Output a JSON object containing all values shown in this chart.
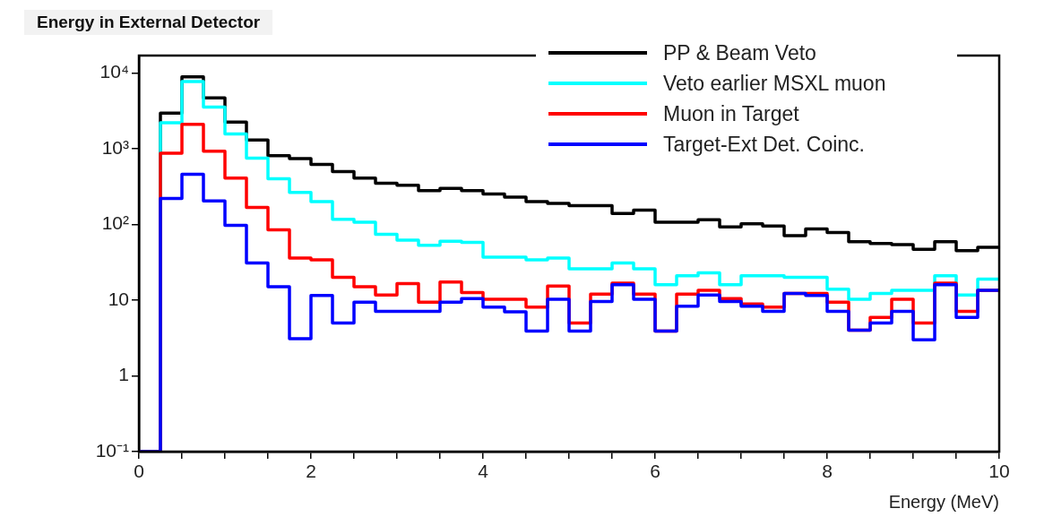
{
  "chart_data": {
    "type": "histogram",
    "title": "Energy in External Detector",
    "xlabel": "Energy (MeV)",
    "bins": [
      0,
      0.25,
      0.5,
      0.75,
      1,
      1.25,
      1.5,
      1.75,
      2,
      2.25,
      2.5,
      2.75,
      3,
      3.25,
      3.5,
      3.75,
      4,
      4.25,
      4.5,
      4.75,
      5,
      5.25,
      5.5,
      5.75,
      6,
      6.25,
      6.5,
      6.75,
      7,
      7.25,
      7.5,
      7.75,
      8,
      8.25,
      8.5,
      8.75,
      9,
      9.25,
      9.5,
      9.75,
      10
    ],
    "series": [
      {
        "name": "PP & Beam Veto",
        "color": "#000000",
        "values": [
          0.1,
          2950,
          8900,
          4700,
          2250,
          1300,
          810,
          740,
          620,
          500,
          410,
          350,
          330,
          280,
          300,
          280,
          253,
          230,
          200,
          190,
          177,
          177,
          140,
          155,
          107,
          107,
          115,
          93,
          102,
          95,
          71,
          87,
          78,
          59,
          56,
          54,
          47,
          59,
          45,
          50
        ]
      },
      {
        "name": "Veto earlier MSXL muon",
        "color": "#00ffff",
        "values": [
          0.1,
          2200,
          7700,
          3550,
          1570,
          750,
          400,
          265,
          200,
          117,
          107,
          74,
          62,
          53,
          60,
          58,
          37,
          37,
          34,
          36,
          26,
          26,
          31,
          26,
          16,
          21,
          23,
          16,
          21,
          21,
          20,
          20,
          14,
          10.3,
          12.3,
          13.5,
          13.5,
          21,
          11.7,
          19
        ]
      },
      {
        "name": "Muon in Target",
        "color": "#ff0000",
        "values": [
          0.1,
          870,
          2100,
          930,
          410,
          168,
          85,
          36,
          34,
          20,
          15,
          11.7,
          16.5,
          9.4,
          17.3,
          12.6,
          10.3,
          10.3,
          8.1,
          15.4,
          5,
          12,
          16.8,
          12,
          3.9,
          12,
          13.5,
          10.5,
          8.9,
          8.1,
          12.3,
          12.3,
          9.4,
          4,
          5.9,
          10.3,
          5,
          16.8,
          7.1,
          13.5
        ]
      },
      {
        "name": "Target-Ext Det. Coinc.",
        "color": "#0000ff",
        "values": [
          0.1,
          220,
          460,
          205,
          97,
          31,
          15,
          3.1,
          11.5,
          5,
          9.4,
          7.1,
          7.1,
          7.1,
          9.4,
          10.5,
          8.1,
          7,
          3.9,
          10.3,
          3.9,
          9.6,
          16,
          10.3,
          3.9,
          8.3,
          11.7,
          9.6,
          8.3,
          7.1,
          12.3,
          11.5,
          7.1,
          4,
          5,
          7.1,
          3,
          16,
          5.9,
          13.5
        ]
      }
    ],
    "log": "y",
    "xlim": [
      0,
      10
    ],
    "ylim": [
      0.1,
      17000
    ],
    "xticks": [
      0,
      {
        "value": 0.5,
        "label": null
      },
      {
        "value": 1,
        "label": null
      },
      {
        "value": 1.5,
        "label": null
      },
      2,
      {
        "value": 2.5,
        "label": null
      },
      {
        "value": 3,
        "label": null
      },
      {
        "value": 3.5,
        "label": null
      },
      4,
      {
        "value": 4.5,
        "label": null
      },
      {
        "value": 5,
        "label": null
      },
      {
        "value": 5.5,
        "label": null
      },
      6,
      {
        "value": 6.5,
        "label": null
      },
      {
        "value": 7,
        "label": null
      },
      {
        "value": 7.5,
        "label": null
      },
      8,
      {
        "value": 8.5,
        "label": null
      },
      {
        "value": 9,
        "label": null
      },
      {
        "value": 9.5,
        "label": null
      },
      10
    ],
    "yticks": [
      {
        "value": 0.1,
        "label": "10⁻¹"
      },
      1,
      10,
      {
        "value": 100,
        "label": "10²"
      },
      {
        "value": 1000,
        "label": "10³"
      },
      {
        "value": 10000,
        "label": "10⁴"
      }
    ],
    "legend": "top right",
    "grid": false,
    "line_style": "solid",
    "marker": "none"
  }
}
